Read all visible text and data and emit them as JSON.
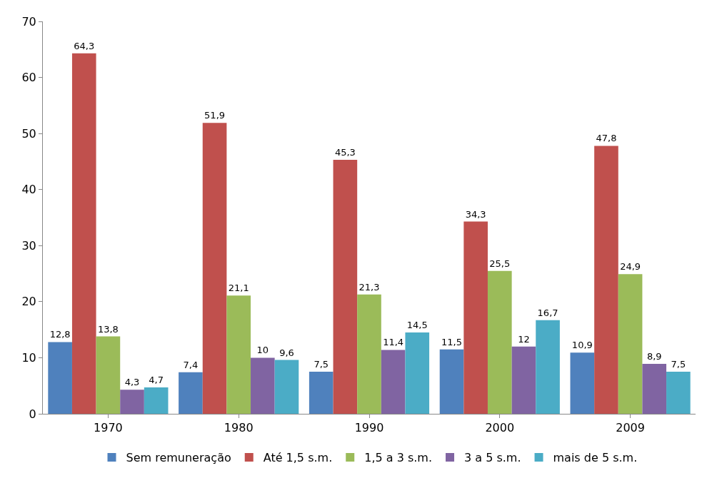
{
  "chart_data": {
    "type": "bar",
    "categories": [
      "1970",
      "1980",
      "1990",
      "2000",
      "2009"
    ],
    "series": [
      {
        "name": "Sem remuneração",
        "color": "#4f81bd",
        "values": [
          12.8,
          7.4,
          7.5,
          11.5,
          10.9
        ],
        "value_labels": [
          "12,8",
          "7,4",
          "7,5",
          "11,5",
          "10,9"
        ]
      },
      {
        "name": "Até 1,5 s.m.",
        "color": "#c0504d",
        "values": [
          64.3,
          51.9,
          45.3,
          34.3,
          47.8
        ],
        "value_labels": [
          "64,3",
          "51,9",
          "45,3",
          "34,3",
          "47,8"
        ]
      },
      {
        "name": "1,5 a 3 s.m.",
        "color": "#9bbb59",
        "values": [
          13.8,
          21.1,
          21.3,
          25.5,
          24.9
        ],
        "value_labels": [
          "13,8",
          "21,1",
          "21,3",
          "25,5",
          "24,9"
        ]
      },
      {
        "name": "3 a 5 s.m.",
        "color": "#8064a2",
        "values": [
          4.3,
          10,
          11.4,
          12,
          8.9
        ],
        "value_labels": [
          "4,3",
          "10",
          "11,4",
          "12",
          "8,9"
        ]
      },
      {
        "name": "mais de 5 s.m.",
        "color": "#4bacc6",
        "values": [
          4.7,
          9.6,
          14.5,
          16.7,
          7.5
        ],
        "value_labels": [
          "4,7",
          "9,6",
          "14,5",
          "16,7",
          "7,5"
        ]
      }
    ],
    "ylim": [
      0,
      70
    ],
    "yticks": [
      0,
      10,
      20,
      30,
      40,
      50,
      60,
      70
    ],
    "grid": false,
    "legend": "bottom"
  }
}
